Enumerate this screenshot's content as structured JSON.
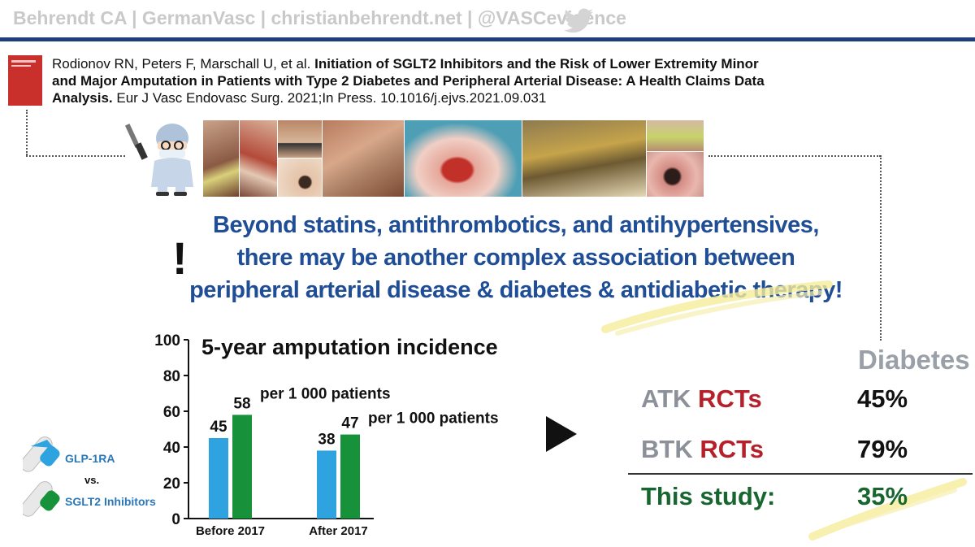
{
  "header": {
    "text": "Behrendt CA | GermanVasc | christianbehrendt.net | @VASCevidence"
  },
  "citation": {
    "authors": "Rodionov RN, Peters F, Marschall U, et al. ",
    "title": "Initiation of SGLT2 Inhibitors and the Risk of Lower Extremity Minor and Major Amputation in Patients with Type 2 Diabetes and Peripheral Arterial Disease: A Health Claims Data Analysis.",
    "source": " Eur J Vasc Endovasc Surg. 2021;In Press. 10.1016/j.ejvs.2021.09.031"
  },
  "headline": {
    "line1": "Beyond statins, antithrombotics, and antihypertensives,",
    "line2": "there may be another complex association between",
    "line3": "peripheral arterial disease & diabetes & antidiabetic therapy!",
    "exclamation": "!"
  },
  "legend": {
    "glp": "GLP-1RA",
    "vs": "vs.",
    "sglt2": "SGLT2 Inhibitors",
    "colors": {
      "glp": "#2ea3e0",
      "sglt2": "#17923a"
    }
  },
  "chart_data": {
    "type": "bar",
    "title": "5-year amputation incidence",
    "categories": [
      "Before 2017",
      "After 2017"
    ],
    "series": [
      {
        "name": "GLP-1RA",
        "values": [
          45,
          38
        ],
        "color": "#2ea3e0"
      },
      {
        "name": "SGLT2 Inhibitors",
        "values": [
          58,
          47
        ],
        "color": "#17923a"
      }
    ],
    "ylim": [
      0,
      100
    ],
    "yticks": [
      0,
      20,
      40,
      60,
      80,
      100
    ],
    "value_unit": "per 1 000 patients",
    "xlabel": "",
    "ylabel": ""
  },
  "comparison": {
    "column_header": "Diabetes",
    "rows": [
      {
        "label_a": "ATK",
        "label_b": "RCTs",
        "value": "45%"
      },
      {
        "label_a": "BTK",
        "label_b": "RCTs",
        "value": "79%"
      },
      {
        "label_a": "This study:",
        "label_b": "",
        "value": "35%"
      }
    ]
  }
}
